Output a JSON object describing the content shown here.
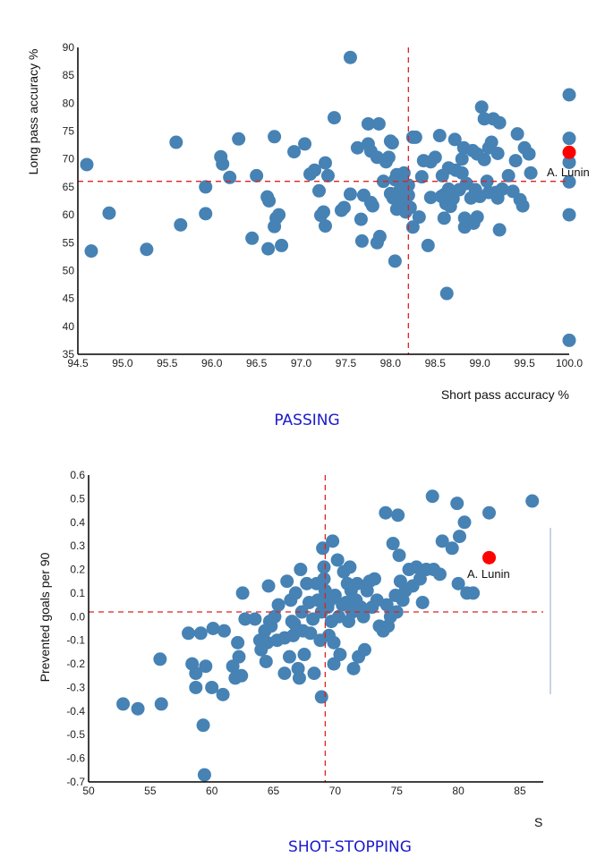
{
  "chart_data": [
    {
      "type": "scatter",
      "title": "PASSING",
      "xlabel": "Short pass accuracy %",
      "ylabel": "Long pass accuracy %",
      "xlim": [
        94.5,
        100.0
      ],
      "ylim": [
        35,
        90
      ],
      "xticks": [
        "94.5",
        "95.0",
        "95.5",
        "96.0",
        "96.5",
        "97.0",
        "97.5",
        "98.0",
        "98.5",
        "99.0",
        "99.5",
        "100.0"
      ],
      "yticks": [
        "35",
        "40",
        "45",
        "50",
        "55",
        "60",
        "65",
        "70",
        "75",
        "80",
        "85",
        "90"
      ],
      "mean_x": 98.2,
      "mean_y": 66,
      "point_color": "#4682b4",
      "highlight_color": "#ff0000",
      "mean_line_color": "#dd2222",
      "highlight": {
        "label": "A. Lunin",
        "x": 100.0,
        "y": 71.2
      },
      "points": [
        [
          94.6,
          69.0
        ],
        [
          94.65,
          53.5
        ],
        [
          94.85,
          60.3
        ],
        [
          95.27,
          53.8
        ],
        [
          95.6,
          73.0
        ],
        [
          95.65,
          58.2
        ],
        [
          95.93,
          65.0
        ],
        [
          95.93,
          60.2
        ],
        [
          96.1,
          70.4
        ],
        [
          96.12,
          69.1
        ],
        [
          96.2,
          66.7
        ],
        [
          96.3,
          73.6
        ],
        [
          96.45,
          55.8
        ],
        [
          96.5,
          67.0
        ],
        [
          96.62,
          63.2
        ],
        [
          96.64,
          62.5
        ],
        [
          96.63,
          53.9
        ],
        [
          96.7,
          74.0
        ],
        [
          96.72,
          59.4
        ],
        [
          96.7,
          57.9
        ],
        [
          96.75,
          60.0
        ],
        [
          96.78,
          54.5
        ],
        [
          96.92,
          71.3
        ],
        [
          97.04,
          72.7
        ],
        [
          97.1,
          67.3
        ],
        [
          97.15,
          68.0
        ],
        [
          97.2,
          64.3
        ],
        [
          97.22,
          59.9
        ],
        [
          97.25,
          60.5
        ],
        [
          97.27,
          69.3
        ],
        [
          97.27,
          58.0
        ],
        [
          97.3,
          67.0
        ],
        [
          97.37,
          77.4
        ],
        [
          97.45,
          60.8
        ],
        [
          97.48,
          61.3
        ],
        [
          97.55,
          88.2
        ],
        [
          97.55,
          63.7
        ],
        [
          97.63,
          72.0
        ],
        [
          97.67,
          59.2
        ],
        [
          97.68,
          55.3
        ],
        [
          97.7,
          63.5
        ],
        [
          97.75,
          76.3
        ],
        [
          97.75,
          72.7
        ],
        [
          97.78,
          62.2
        ],
        [
          97.78,
          71.4
        ],
        [
          97.8,
          61.6
        ],
        [
          97.85,
          70.3
        ],
        [
          97.85,
          55.0
        ],
        [
          97.87,
          76.3
        ],
        [
          97.88,
          56.1
        ],
        [
          97.92,
          66.0
        ],
        [
          97.95,
          69.5
        ],
        [
          97.98,
          70.3
        ],
        [
          98.0,
          73.2
        ],
        [
          98.02,
          72.9
        ],
        [
          98.0,
          63.8
        ],
        [
          98.03,
          63.0
        ],
        [
          98.05,
          51.7
        ],
        [
          98.05,
          66.3
        ],
        [
          98.07,
          61.0
        ],
        [
          98.07,
          67.2
        ],
        [
          98.1,
          66.0
        ],
        [
          98.1,
          64.3
        ],
        [
          98.12,
          62.5
        ],
        [
          98.15,
          67.5
        ],
        [
          98.17,
          60.5
        ],
        [
          98.2,
          63.5
        ],
        [
          98.2,
          65.3
        ],
        [
          98.22,
          61.3
        ],
        [
          98.25,
          57.8
        ],
        [
          98.25,
          73.9
        ],
        [
          98.28,
          73.9
        ],
        [
          98.32,
          59.6
        ],
        [
          98.37,
          69.7
        ],
        [
          98.35,
          66.8
        ],
        [
          98.42,
          54.5
        ],
        [
          98.45,
          69.5
        ],
        [
          98.45,
          63.1
        ],
        [
          98.5,
          70.3
        ],
        [
          98.55,
          74.2
        ],
        [
          98.57,
          63.3
        ],
        [
          98.58,
          67.0
        ],
        [
          98.6,
          59.4
        ],
        [
          98.6,
          63.6
        ],
        [
          98.62,
          62.0
        ],
        [
          98.63,
          45.9
        ],
        [
          98.65,
          68.4
        ],
        [
          98.65,
          64.6
        ],
        [
          98.67,
          61.5
        ],
        [
          98.7,
          62.9
        ],
        [
          98.72,
          73.5
        ],
        [
          98.73,
          68.0
        ],
        [
          98.77,
          64.5
        ],
        [
          98.8,
          67.5
        ],
        [
          98.8,
          70.0
        ],
        [
          98.82,
          72.0
        ],
        [
          98.83,
          57.8
        ],
        [
          98.83,
          59.4
        ],
        [
          98.85,
          65.6
        ],
        [
          98.9,
          63.0
        ],
        [
          98.92,
          71.5
        ],
        [
          98.93,
          58.5
        ],
        [
          98.95,
          64.5
        ],
        [
          98.97,
          59.6
        ],
        [
          98.97,
          70.9
        ],
        [
          99.0,
          63.3
        ],
        [
          99.02,
          79.3
        ],
        [
          99.05,
          77.2
        ],
        [
          99.05,
          69.9
        ],
        [
          99.08,
          66.0
        ],
        [
          99.1,
          64.0
        ],
        [
          99.1,
          72.0
        ],
        [
          99.13,
          73.0
        ],
        [
          99.15,
          77.2
        ],
        [
          99.18,
          64.0
        ],
        [
          99.2,
          63.0
        ],
        [
          99.2,
          71.0
        ],
        [
          99.22,
          76.5
        ],
        [
          99.22,
          57.3
        ],
        [
          99.25,
          64.6
        ],
        [
          99.32,
          67.0
        ],
        [
          99.37,
          64.2
        ],
        [
          99.4,
          69.7
        ],
        [
          99.42,
          74.5
        ],
        [
          99.45,
          62.7
        ],
        [
          99.48,
          61.6
        ],
        [
          99.5,
          72.0
        ],
        [
          99.55,
          70.9
        ],
        [
          99.57,
          67.5
        ],
        [
          100.0,
          81.5
        ],
        [
          100.0,
          73.7
        ],
        [
          100.0,
          69.4
        ],
        [
          100.0,
          65.9
        ],
        [
          100.0,
          60.0
        ],
        [
          100.0,
          37.5
        ]
      ]
    },
    {
      "type": "scatter",
      "title": "SHOT-STOPPING",
      "xlabel": "S",
      "ylabel": "Prevented goals per 90",
      "xlim": [
        50,
        87
      ],
      "ylim": [
        -0.7,
        0.6
      ],
      "xticks": [
        "50",
        "55",
        "60",
        "65",
        "70",
        "75",
        "80",
        "85"
      ],
      "yticks": [
        "-0.7",
        "-0.6",
        "-0.5",
        "-0.4",
        "-0.3",
        "-0.2",
        "-0.1",
        "0.0",
        "0.1",
        "0.2",
        "0.3",
        "0.4",
        "0.5",
        "0.6"
      ],
      "mean_x": 69.2,
      "mean_y": 0.02,
      "point_color": "#4682b4",
      "highlight_color": "#ff0000",
      "mean_line_color": "#dd2222",
      "highlight": {
        "label": "A. Lunin",
        "x": 82.5,
        "y": 0.25
      },
      "points": [
        [
          52.8,
          -0.37
        ],
        [
          54.0,
          -0.39
        ],
        [
          55.8,
          -0.18
        ],
        [
          55.9,
          -0.37
        ],
        [
          58.1,
          -0.07
        ],
        [
          58.4,
          -0.2
        ],
        [
          58.7,
          -0.24
        ],
        [
          58.7,
          -0.3
        ],
        [
          59.1,
          -0.07
        ],
        [
          59.3,
          -0.46
        ],
        [
          59.4,
          -0.67
        ],
        [
          59.5,
          -0.21
        ],
        [
          60.0,
          -0.3
        ],
        [
          60.1,
          -0.05
        ],
        [
          60.9,
          -0.33
        ],
        [
          61.0,
          -0.06
        ],
        [
          61.7,
          -0.21
        ],
        [
          61.9,
          -0.26
        ],
        [
          62.1,
          -0.11
        ],
        [
          62.2,
          -0.17
        ],
        [
          62.4,
          -0.25
        ],
        [
          62.5,
          0.1
        ],
        [
          62.7,
          -0.01
        ],
        [
          63.5,
          -0.01
        ],
        [
          63.9,
          -0.1
        ],
        [
          64.0,
          -0.14
        ],
        [
          64.3,
          -0.06
        ],
        [
          64.4,
          -0.19
        ],
        [
          64.5,
          -0.11
        ],
        [
          64.6,
          0.13
        ],
        [
          64.7,
          -0.02
        ],
        [
          64.8,
          -0.04
        ],
        [
          65.1,
          0.0
        ],
        [
          65.3,
          -0.1
        ],
        [
          65.4,
          0.05
        ],
        [
          65.9,
          -0.24
        ],
        [
          65.9,
          -0.09
        ],
        [
          66.1,
          0.15
        ],
        [
          66.3,
          -0.17
        ],
        [
          66.4,
          0.07
        ],
        [
          66.5,
          -0.02
        ],
        [
          66.6,
          -0.08
        ],
        [
          66.7,
          -0.03
        ],
        [
          66.8,
          0.1
        ],
        [
          67.0,
          -0.22
        ],
        [
          67.1,
          -0.26
        ],
        [
          67.2,
          0.2
        ],
        [
          67.3,
          0.02
        ],
        [
          67.4,
          -0.06
        ],
        [
          67.5,
          -0.16
        ],
        [
          67.7,
          0.14
        ],
        [
          67.9,
          0.06
        ],
        [
          68.0,
          -0.07
        ],
        [
          68.2,
          -0.01
        ],
        [
          68.3,
          -0.24
        ],
        [
          68.5,
          0.14
        ],
        [
          68.6,
          0.07
        ],
        [
          68.8,
          -0.1
        ],
        [
          68.9,
          0.02
        ],
        [
          68.9,
          -0.34
        ],
        [
          69.0,
          0.29
        ],
        [
          69.1,
          0.21
        ],
        [
          69.1,
          0.16
        ],
        [
          69.2,
          0.11
        ],
        [
          69.4,
          0.04
        ],
        [
          69.5,
          -0.08
        ],
        [
          69.6,
          0.07
        ],
        [
          69.7,
          -0.02
        ],
        [
          69.8,
          0.32
        ],
        [
          69.9,
          -0.11
        ],
        [
          69.9,
          -0.2
        ],
        [
          70.0,
          0.09
        ],
        [
          70.2,
          0.24
        ],
        [
          70.3,
          0.0
        ],
        [
          70.4,
          -0.16
        ],
        [
          70.6,
          0.05
        ],
        [
          70.7,
          0.19
        ],
        [
          70.9,
          0.06
        ],
        [
          71.0,
          0.14
        ],
        [
          71.1,
          -0.02
        ],
        [
          71.2,
          0.21
        ],
        [
          71.3,
          0.11
        ],
        [
          71.4,
          0.02
        ],
        [
          71.5,
          -0.22
        ],
        [
          71.7,
          0.07
        ],
        [
          71.8,
          0.14
        ],
        [
          71.9,
          -0.17
        ],
        [
          72.1,
          0.04
        ],
        [
          72.3,
          0.0
        ],
        [
          72.4,
          -0.14
        ],
        [
          72.6,
          0.11
        ],
        [
          72.8,
          0.15
        ],
        [
          73.0,
          0.04
        ],
        [
          73.2,
          0.16
        ],
        [
          73.4,
          0.07
        ],
        [
          73.6,
          -0.04
        ],
        [
          73.9,
          -0.06
        ],
        [
          74.1,
          0.44
        ],
        [
          74.2,
          0.05
        ],
        [
          74.3,
          -0.04
        ],
        [
          74.5,
          0.0
        ],
        [
          74.7,
          0.31
        ],
        [
          74.9,
          0.09
        ],
        [
          75.0,
          0.02
        ],
        [
          75.1,
          0.43
        ],
        [
          75.2,
          0.26
        ],
        [
          75.3,
          0.15
        ],
        [
          75.5,
          0.07
        ],
        [
          75.7,
          0.11
        ],
        [
          76.0,
          0.2
        ],
        [
          76.3,
          0.13
        ],
        [
          76.6,
          0.21
        ],
        [
          76.9,
          0.16
        ],
        [
          77.1,
          0.06
        ],
        [
          77.4,
          0.2
        ],
        [
          77.9,
          0.51
        ],
        [
          78.0,
          0.2
        ],
        [
          78.5,
          0.18
        ],
        [
          78.7,
          0.32
        ],
        [
          79.5,
          0.29
        ],
        [
          79.9,
          0.48
        ],
        [
          80.0,
          0.14
        ],
        [
          80.1,
          0.34
        ],
        [
          80.5,
          0.4
        ],
        [
          80.7,
          0.1
        ],
        [
          81.2,
          0.1
        ],
        [
          82.5,
          0.44
        ],
        [
          86.0,
          0.49
        ]
      ]
    }
  ]
}
